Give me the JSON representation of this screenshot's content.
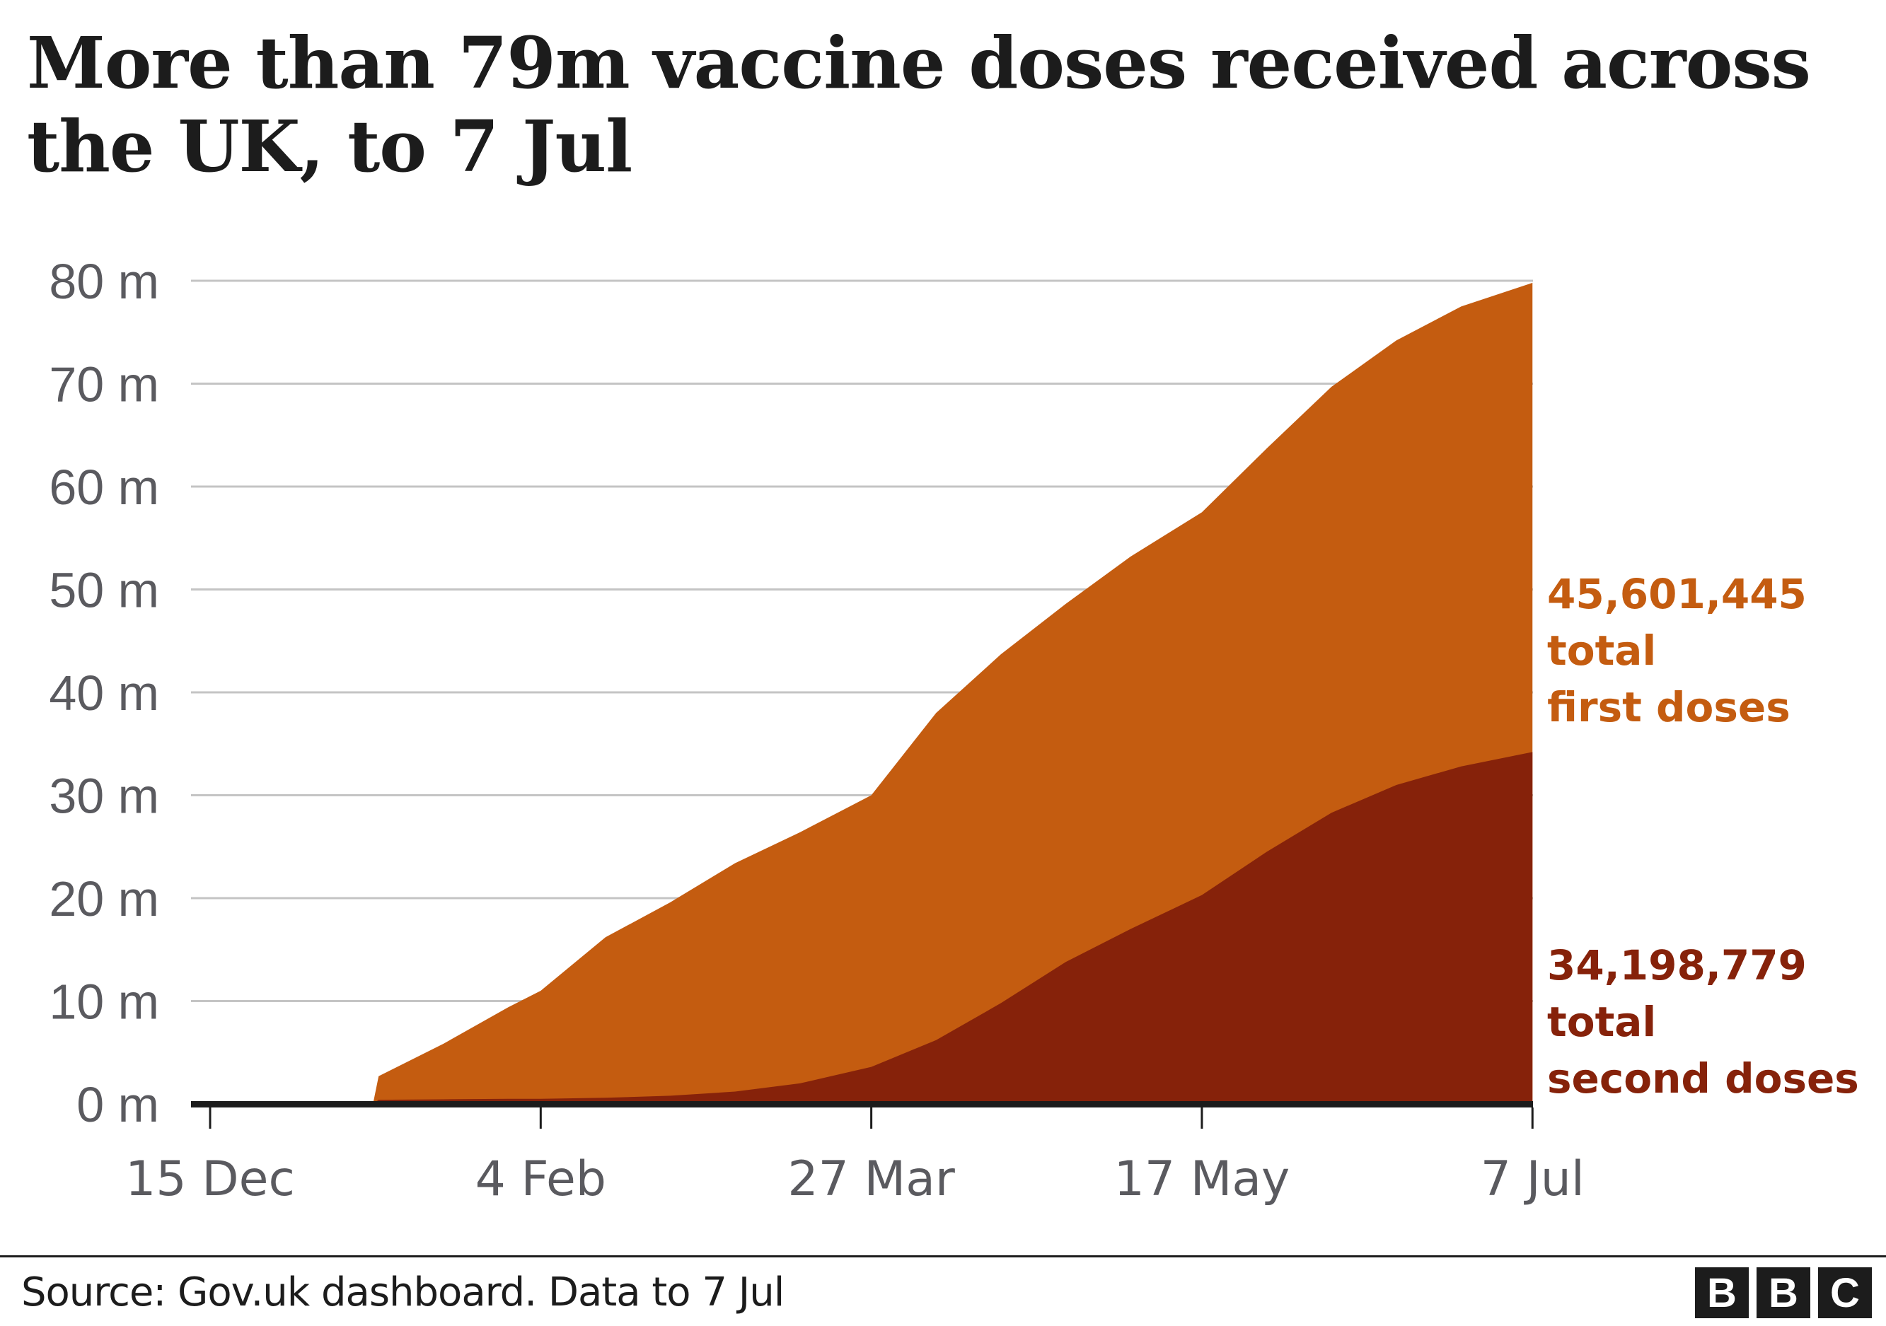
{
  "title": "More than 79m vaccine doses received across the UK, to 7 Jul",
  "footer": {
    "source": "Source: Gov.uk dashboard. Data to 7 Jul",
    "logo_letters": [
      "B",
      "B",
      "C"
    ]
  },
  "annotations": {
    "first": {
      "value": "45,601,445",
      "line2": "total",
      "line3": "first doses",
      "color": "#c45c10"
    },
    "second": {
      "value": "34,198,779",
      "line2": "total",
      "line3": "second doses",
      "color": "#86220a"
    }
  },
  "chart_data": {
    "type": "area",
    "stacked": true,
    "title": "More than 79m vaccine doses received across the UK, to 7 Jul",
    "xlabel": "",
    "ylabel": "",
    "ylim": [
      0,
      80
    ],
    "y_unit": "m",
    "yticks": [
      "0 m",
      "10 m",
      "20 m",
      "30 m",
      "40 m",
      "50 m",
      "60 m",
      "70 m",
      "80 m"
    ],
    "yticks_values": [
      0,
      10,
      20,
      30,
      40,
      50,
      60,
      70,
      80
    ],
    "xticks": [
      "15 Dec",
      "4 Feb",
      "27 Mar",
      "17 May",
      "7 Jul"
    ],
    "grid": true,
    "legend": "direct labels at right end of series",
    "x": [
      "15 Dec",
      "25 Dec",
      "4 Jan",
      "10 Jan",
      "20 Jan",
      "30 Jan",
      "4 Feb",
      "14 Feb",
      "24 Feb",
      "6 Mar",
      "16 Mar",
      "27 Mar",
      "6 Apr",
      "16 Apr",
      "26 Apr",
      "6 May",
      "17 May",
      "27 May",
      "6 Jun",
      "16 Jun",
      "26 Jun",
      "7 Jul"
    ],
    "series": [
      {
        "name": "Second doses (cumulative)",
        "color": "#86220a",
        "values": [
          0,
          0,
          0,
          0.4,
          0.45,
          0.5,
          0.5,
          0.6,
          0.8,
          1.2,
          2.0,
          3.6,
          6.2,
          9.8,
          13.8,
          17.0,
          20.3,
          24.5,
          28.3,
          31.0,
          32.8,
          34.2
        ]
      },
      {
        "name": "First doses (cumulative)",
        "color": "#c45c10",
        "values": [
          0,
          0,
          0,
          2.3,
          5.4,
          8.9,
          10.5,
          15.6,
          18.8,
          22.2,
          24.4,
          26.4,
          31.8,
          33.9,
          34.8,
          36.2,
          37.2,
          39.2,
          41.4,
          43.2,
          44.7,
          45.6
        ]
      }
    ],
    "stacked_total": [
      0,
      0,
      0,
      2.7,
      5.85,
      9.4,
      11.0,
      16.2,
      19.6,
      23.4,
      26.4,
      30.0,
      38.0,
      43.7,
      48.6,
      53.2,
      57.5,
      63.7,
      69.7,
      74.2,
      77.5,
      79.8
    ],
    "end_labels": {
      "first_doses_total": 45601445,
      "second_doses_total": 34198779
    }
  }
}
